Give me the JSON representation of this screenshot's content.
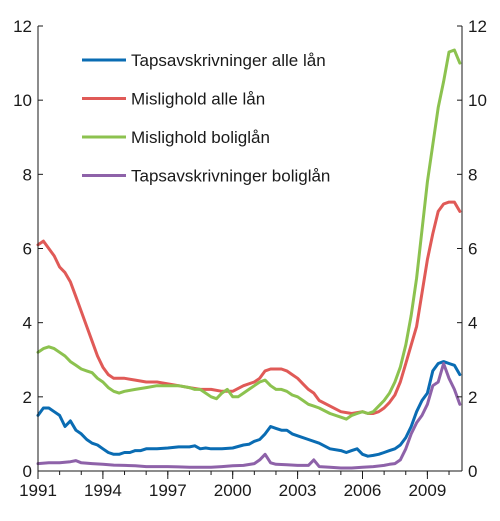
{
  "chart_data": {
    "type": "line",
    "title": "",
    "xlabel": "",
    "ylabel": "",
    "xlim": [
      1991,
      2010.6
    ],
    "ylim": [
      0,
      12
    ],
    "x_ticks": [
      {
        "value": 1991,
        "label": "1991"
      },
      {
        "value": 1994,
        "label": "1994"
      },
      {
        "value": 1997,
        "label": "1997"
      },
      {
        "value": 2000,
        "label": "2000"
      },
      {
        "value": 2003,
        "label": "2003"
      },
      {
        "value": 2006,
        "label": "2006"
      },
      {
        "value": 2009,
        "label": "2009"
      }
    ],
    "y_ticks": [
      {
        "value": 0,
        "label": "0"
      },
      {
        "value": 2,
        "label": "2"
      },
      {
        "value": 4,
        "label": "4"
      },
      {
        "value": 6,
        "label": "6"
      },
      {
        "value": 8,
        "label": "8"
      },
      {
        "value": 10,
        "label": "10"
      },
      {
        "value": 12,
        "label": "12"
      }
    ],
    "y_axis_both_sides": true,
    "grid": false,
    "legend_position": "top-left",
    "series": [
      {
        "name": "Tapsavskrivninger alle lån",
        "color": "#0a6cb3",
        "x": [
          1991.0,
          1991.25,
          1991.5,
          1991.75,
          1992.0,
          1992.25,
          1992.5,
          1992.75,
          1993.0,
          1993.25,
          1993.5,
          1993.75,
          1994.0,
          1994.25,
          1994.5,
          1994.75,
          1995.0,
          1995.25,
          1995.5,
          1995.75,
          1996.0,
          1996.5,
          1997.0,
          1997.5,
          1998.0,
          1998.25,
          1998.5,
          1998.75,
          1999.0,
          1999.5,
          2000.0,
          2000.5,
          2000.75,
          2001.0,
          2001.25,
          2001.5,
          2001.75,
          2002.0,
          2002.25,
          2002.5,
          2002.75,
          2003.0,
          2003.5,
          2004.0,
          2004.5,
          2005.0,
          2005.25,
          2005.5,
          2005.75,
          2006.0,
          2006.25,
          2006.5,
          2006.75,
          2007.0,
          2007.25,
          2007.5,
          2007.75,
          2008.0,
          2008.25,
          2008.5,
          2008.75,
          2009.0,
          2009.25,
          2009.5,
          2009.75,
          2010.0,
          2010.25,
          2010.5
        ],
        "values": [
          1.5,
          1.7,
          1.7,
          1.6,
          1.5,
          1.2,
          1.35,
          1.1,
          1.0,
          0.85,
          0.75,
          0.7,
          0.6,
          0.5,
          0.45,
          0.45,
          0.5,
          0.5,
          0.55,
          0.55,
          0.6,
          0.6,
          0.62,
          0.65,
          0.65,
          0.68,
          0.6,
          0.62,
          0.6,
          0.6,
          0.62,
          0.7,
          0.72,
          0.8,
          0.85,
          1.0,
          1.2,
          1.15,
          1.1,
          1.1,
          1.0,
          0.95,
          0.85,
          0.75,
          0.6,
          0.55,
          0.5,
          0.55,
          0.6,
          0.45,
          0.4,
          0.42,
          0.45,
          0.5,
          0.55,
          0.6,
          0.7,
          0.9,
          1.2,
          1.6,
          1.9,
          2.1,
          2.7,
          2.9,
          2.95,
          2.9,
          2.85,
          2.6
        ]
      },
      {
        "name": "Mislighold alle lån",
        "color": "#e05a57",
        "x": [
          1991.0,
          1991.25,
          1991.5,
          1991.75,
          1992.0,
          1992.25,
          1992.5,
          1992.75,
          1993.0,
          1993.25,
          1993.5,
          1993.75,
          1994.0,
          1994.25,
          1994.5,
          1994.75,
          1995.0,
          1995.5,
          1996.0,
          1996.5,
          1997.0,
          1997.5,
          1998.0,
          1998.5,
          1999.0,
          1999.5,
          2000.0,
          2000.5,
          2001.0,
          2001.25,
          2001.5,
          2001.75,
          2002.0,
          2002.25,
          2002.5,
          2002.75,
          2003.0,
          2003.25,
          2003.5,
          2003.75,
          2004.0,
          2004.5,
          2005.0,
          2005.5,
          2006.0,
          2006.25,
          2006.5,
          2006.75,
          2007.0,
          2007.25,
          2007.5,
          2007.75,
          2008.0,
          2008.25,
          2008.5,
          2008.75,
          2009.0,
          2009.25,
          2009.5,
          2009.75,
          2010.0,
          2010.25,
          2010.5
        ],
        "values": [
          6.1,
          6.2,
          6.0,
          5.8,
          5.5,
          5.35,
          5.1,
          4.7,
          4.3,
          3.9,
          3.5,
          3.1,
          2.8,
          2.6,
          2.5,
          2.5,
          2.5,
          2.45,
          2.4,
          2.4,
          2.35,
          2.3,
          2.25,
          2.2,
          2.2,
          2.15,
          2.15,
          2.3,
          2.4,
          2.5,
          2.7,
          2.75,
          2.75,
          2.75,
          2.7,
          2.6,
          2.5,
          2.35,
          2.2,
          2.1,
          1.9,
          1.75,
          1.6,
          1.55,
          1.6,
          1.55,
          1.55,
          1.6,
          1.7,
          1.85,
          2.05,
          2.4,
          2.9,
          3.4,
          3.9,
          4.8,
          5.7,
          6.4,
          7.0,
          7.2,
          7.25,
          7.25,
          7.0
        ]
      },
      {
        "name": "Mislighold boliglån",
        "color": "#8cc24f",
        "x": [
          1991.0,
          1991.25,
          1991.5,
          1991.75,
          1992.0,
          1992.25,
          1992.5,
          1992.75,
          1993.0,
          1993.25,
          1993.5,
          1993.75,
          1994.0,
          1994.25,
          1994.5,
          1994.75,
          1995.0,
          1995.5,
          1996.0,
          1996.5,
          1997.0,
          1997.5,
          1998.0,
          1998.25,
          1998.5,
          1998.75,
          1999.0,
          1999.25,
          1999.5,
          1999.75,
          2000.0,
          2000.25,
          2000.5,
          2000.75,
          2001.0,
          2001.25,
          2001.5,
          2001.75,
          2002.0,
          2002.25,
          2002.5,
          2002.75,
          2003.0,
          2003.25,
          2003.5,
          2003.75,
          2004.0,
          2004.5,
          2005.0,
          2005.25,
          2005.5,
          2005.75,
          2006.0,
          2006.25,
          2006.5,
          2006.75,
          2007.0,
          2007.25,
          2007.5,
          2007.75,
          2008.0,
          2008.25,
          2008.5,
          2008.75,
          2009.0,
          2009.25,
          2009.5,
          2009.75,
          2010.0,
          2010.25,
          2010.5
        ],
        "values": [
          3.2,
          3.3,
          3.35,
          3.3,
          3.2,
          3.1,
          2.95,
          2.85,
          2.75,
          2.7,
          2.65,
          2.5,
          2.4,
          2.25,
          2.15,
          2.1,
          2.15,
          2.2,
          2.25,
          2.3,
          2.3,
          2.3,
          2.25,
          2.2,
          2.2,
          2.1,
          2.0,
          1.95,
          2.1,
          2.2,
          2.0,
          2.0,
          2.1,
          2.2,
          2.3,
          2.4,
          2.45,
          2.3,
          2.2,
          2.2,
          2.15,
          2.05,
          2.0,
          1.9,
          1.8,
          1.75,
          1.7,
          1.55,
          1.45,
          1.4,
          1.5,
          1.55,
          1.6,
          1.55,
          1.6,
          1.75,
          1.9,
          2.1,
          2.4,
          2.8,
          3.4,
          4.2,
          5.2,
          6.5,
          7.8,
          8.8,
          9.8,
          10.5,
          11.3,
          11.35,
          11.0
        ]
      },
      {
        "name": "Tapsavskrivninger boliglån",
        "color": "#8e62a9",
        "x": [
          1991.0,
          1991.5,
          1992.0,
          1992.5,
          1992.75,
          1993.0,
          1993.5,
          1994.0,
          1994.5,
          1995.0,
          1995.5,
          1996.0,
          1996.5,
          1997.0,
          1997.5,
          1998.0,
          1998.5,
          1999.0,
          1999.5,
          2000.0,
          2000.5,
          2001.0,
          2001.25,
          2001.5,
          2001.75,
          2002.0,
          2002.5,
          2003.0,
          2003.5,
          2003.75,
          2004.0,
          2004.5,
          2005.0,
          2005.5,
          2006.0,
          2006.5,
          2007.0,
          2007.25,
          2007.5,
          2007.75,
          2008.0,
          2008.25,
          2008.5,
          2008.75,
          2009.0,
          2009.25,
          2009.5,
          2009.75,
          2010.0,
          2010.25,
          2010.5
        ],
        "values": [
          0.2,
          0.22,
          0.22,
          0.25,
          0.28,
          0.22,
          0.2,
          0.18,
          0.16,
          0.15,
          0.14,
          0.12,
          0.12,
          0.12,
          0.11,
          0.1,
          0.1,
          0.1,
          0.12,
          0.14,
          0.15,
          0.2,
          0.3,
          0.45,
          0.22,
          0.18,
          0.17,
          0.15,
          0.15,
          0.3,
          0.12,
          0.1,
          0.08,
          0.08,
          0.1,
          0.12,
          0.15,
          0.18,
          0.2,
          0.3,
          0.6,
          1.0,
          1.3,
          1.5,
          1.8,
          2.3,
          2.4,
          2.9,
          2.5,
          2.2,
          1.8
        ]
      }
    ]
  }
}
